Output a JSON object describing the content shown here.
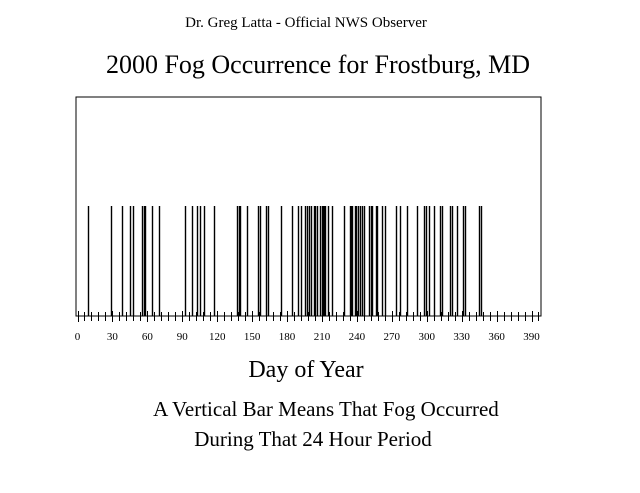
{
  "header": {
    "observer": "Dr. Greg Latta - Official NWS Observer"
  },
  "chart_data": {
    "type": "bar",
    "title": "2000 Fog Occurrence for Frostburg, MD",
    "xlabel": "Day of Year",
    "ylabel": "",
    "xlim": [
      0,
      396
    ],
    "x_tick_labels": [
      "0",
      "30",
      "60",
      "90",
      "120",
      "150",
      "180",
      "210",
      "240",
      "270",
      "300",
      "330",
      "360",
      "390"
    ],
    "x_ticks": [
      0,
      30,
      60,
      90,
      120,
      150,
      180,
      210,
      240,
      270,
      300,
      330,
      360,
      390
    ],
    "minor_tick_step": 6,
    "grid": false,
    "fog_days": [
      9,
      29,
      38,
      45,
      48,
      55,
      57,
      58,
      64,
      70,
      92,
      98,
      103,
      105,
      109,
      117,
      137,
      139,
      140,
      146,
      155,
      157,
      162,
      164,
      175,
      184,
      189,
      192,
      195,
      197,
      199,
      201,
      203,
      204,
      206,
      208,
      210,
      211,
      212,
      213,
      215,
      219,
      229,
      234,
      235,
      236,
      238,
      239,
      241,
      243,
      244,
      246,
      250,
      252,
      253,
      256,
      257,
      262,
      264,
      274,
      277,
      283,
      292,
      298,
      299,
      302,
      306,
      311,
      313,
      320,
      322,
      326,
      331,
      333,
      345,
      347
    ],
    "bar_value": 1,
    "annotations": [
      "A Vertical Bar Means That Fog Occurred",
      "During That 24 Hour Period"
    ]
  }
}
